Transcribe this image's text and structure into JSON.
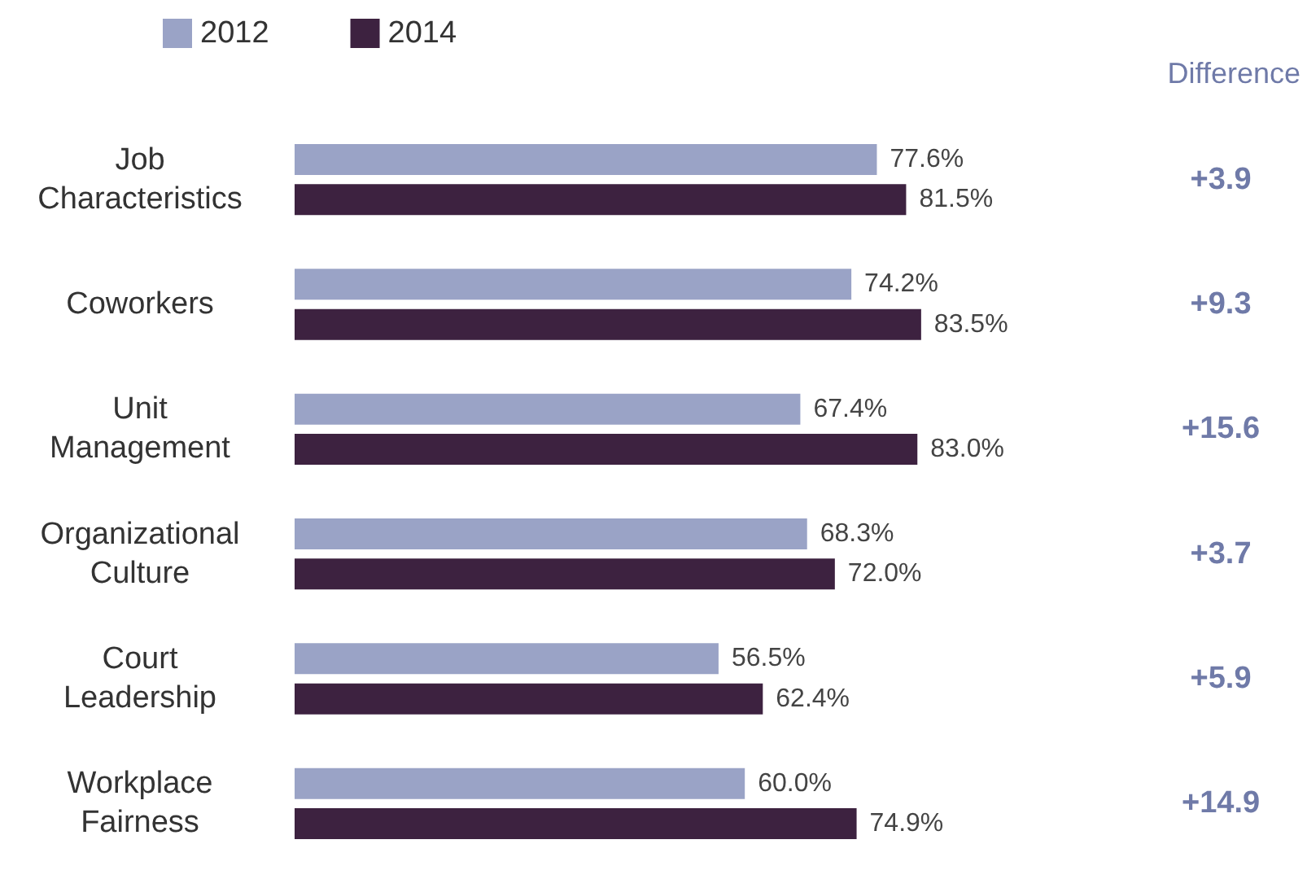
{
  "chart_data": {
    "type": "bar",
    "orientation": "horizontal",
    "categories": [
      "Job\nCharacteristics",
      "Coworkers",
      "Unit\nManagement",
      "Organizational\nCulture",
      "Court\nLeadership",
      "Workplace\nFairness"
    ],
    "series": [
      {
        "name": "2012",
        "color": "#9aa3c6",
        "values": [
          77.6,
          74.2,
          67.4,
          68.3,
          56.5,
          60.0
        ],
        "value_labels": [
          "77.6%",
          "74.2%",
          "67.4%",
          "68.3%",
          "56.5%",
          "60.0%"
        ]
      },
      {
        "name": "2014",
        "color": "#3d2240",
        "values": [
          81.5,
          83.5,
          83.0,
          72.0,
          62.4,
          74.9
        ],
        "value_labels": [
          "81.5%",
          "83.5%",
          "83.0%",
          "72.0%",
          "62.4%",
          "74.9%"
        ]
      }
    ],
    "annotations": [
      "Difference",
      "+3.9",
      "+9.3",
      "+15.6",
      "+3.7",
      "+5.9",
      "+14.9"
    ],
    "legend": "top left"
  }
}
